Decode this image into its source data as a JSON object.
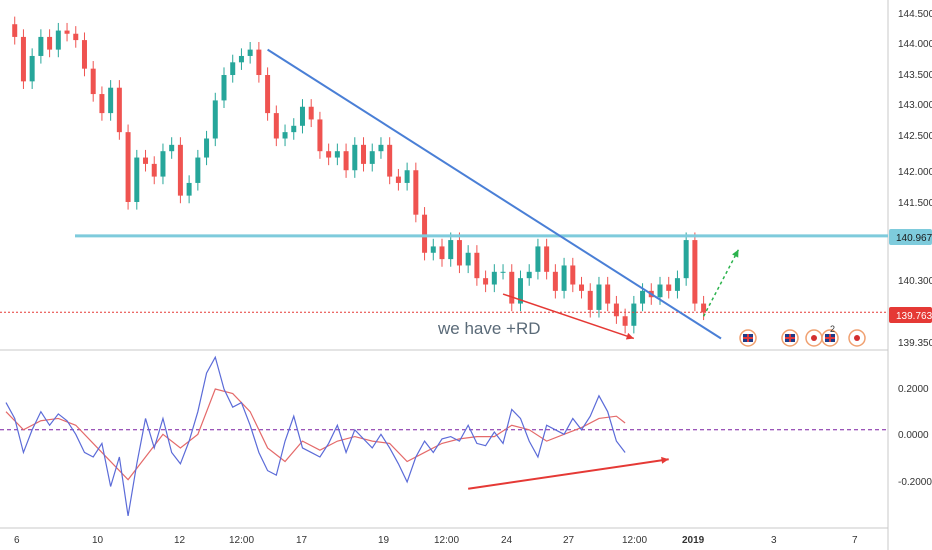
{
  "colors": {
    "up": "#26a69a",
    "down": "#ef5350",
    "trendline": "#4a7fd6",
    "resistance": "#7ecbdc",
    "current_price_line": "#e53935",
    "annotation": "#e53935",
    "projection": "#2bb24c",
    "osc_fast": "#5b6bd8",
    "osc_slow": "#e46a6a",
    "osc_zero": "#7b1fa2"
  },
  "price_panel": {
    "y_axis_ticks": [
      "144.500",
      "144.000",
      "143.500",
      "143.000",
      "142.500",
      "142.000",
      "141.500",
      "140.300",
      "139.350"
    ],
    "resistance_label": "140.967",
    "current_price_label": "139.763",
    "annotation_text": "we have +RD",
    "event_badges": [
      "uk-flag-icon",
      "uk-flag-icon",
      "uk-flag-icon",
      "japan-flag-icon",
      "uk-flag-icon",
      "japan-flag-icon"
    ],
    "event_badge_count": "2"
  },
  "oscillator_panel": {
    "y_axis_ticks": [
      "0.2000",
      "0.0000",
      "-0.2000"
    ]
  },
  "x_axis_ticks": [
    "6",
    "10",
    "12",
    "12:00",
    "17",
    "19",
    "12:00",
    "24",
    "27",
    "12:00",
    "2019",
    "3",
    "7"
  ],
  "chart_data": {
    "type": "line",
    "title": "",
    "price_series": {
      "y_range": [
        139.2,
        144.65
      ],
      "x_range": [
        0,
        100
      ],
      "close": [
        [
          0,
          144.3
        ],
        [
          1,
          144.1
        ],
        [
          2,
          143.4
        ],
        [
          3,
          143.8
        ],
        [
          4,
          144.1
        ],
        [
          5,
          143.9
        ],
        [
          6,
          144.2
        ],
        [
          7,
          144.15
        ],
        [
          8,
          144.05
        ],
        [
          9,
          143.6
        ],
        [
          10,
          143.2
        ],
        [
          11,
          142.9
        ],
        [
          12,
          143.3
        ],
        [
          13,
          142.6
        ],
        [
          14,
          141.5
        ],
        [
          15,
          142.2
        ],
        [
          16,
          142.1
        ],
        [
          17,
          141.9
        ],
        [
          18,
          142.3
        ],
        [
          19,
          142.4
        ],
        [
          20,
          141.6
        ],
        [
          21,
          141.8
        ],
        [
          22,
          142.2
        ],
        [
          23,
          142.5
        ],
        [
          24,
          143.1
        ],
        [
          25,
          143.5
        ],
        [
          26,
          143.7
        ],
        [
          27,
          143.8
        ],
        [
          28,
          143.9
        ],
        [
          29,
          143.5
        ],
        [
          30,
          142.9
        ],
        [
          31,
          142.5
        ],
        [
          32,
          142.6
        ],
        [
          33,
          142.7
        ],
        [
          34,
          143.0
        ],
        [
          35,
          142.8
        ],
        [
          36,
          142.3
        ],
        [
          37,
          142.2
        ],
        [
          38,
          142.3
        ],
        [
          39,
          142.0
        ],
        [
          40,
          142.4
        ],
        [
          41,
          142.1
        ],
        [
          42,
          142.3
        ],
        [
          43,
          142.4
        ],
        [
          44,
          141.9
        ],
        [
          45,
          141.8
        ],
        [
          46,
          142.0
        ],
        [
          47,
          141.3
        ],
        [
          48,
          140.7
        ],
        [
          49,
          140.8
        ],
        [
          50,
          140.6
        ],
        [
          51,
          140.9
        ],
        [
          52,
          140.5
        ],
        [
          53,
          140.7
        ],
        [
          54,
          140.3
        ],
        [
          55,
          140.2
        ],
        [
          56,
          140.4
        ],
        [
          57,
          140.4
        ],
        [
          58,
          139.9
        ],
        [
          59,
          140.3
        ],
        [
          60,
          140.4
        ],
        [
          61,
          140.8
        ],
        [
          62,
          140.4
        ],
        [
          63,
          140.1
        ],
        [
          64,
          140.5
        ],
        [
          65,
          140.2
        ],
        [
          66,
          140.1
        ],
        [
          67,
          139.8
        ],
        [
          68,
          140.2
        ],
        [
          69,
          139.9
        ],
        [
          70,
          139.7
        ],
        [
          71,
          139.55
        ],
        [
          72,
          139.9
        ],
        [
          73,
          140.1
        ],
        [
          74,
          140.0
        ],
        [
          75,
          140.2
        ],
        [
          76,
          140.1
        ],
        [
          77,
          140.3
        ],
        [
          78,
          140.9
        ],
        [
          79,
          139.9
        ],
        [
          80,
          139.76
        ]
      ],
      "trendline": [
        [
          30,
          143.9
        ],
        [
          82,
          139.35
        ]
      ],
      "resistance_level": 140.967,
      "current_price": 139.763,
      "annotation_arrow": [
        [
          57,
          140.05
        ],
        [
          72,
          139.35
        ]
      ],
      "projection_arrow": [
        [
          80,
          139.7
        ],
        [
          84,
          140.75
        ]
      ]
    },
    "oscillator": {
      "y_range": [
        -0.42,
        0.33
      ],
      "zero_line": 0,
      "fast": [
        [
          0,
          0.12
        ],
        [
          1,
          0.05
        ],
        [
          2,
          -0.1
        ],
        [
          3,
          0.0
        ],
        [
          4,
          0.08
        ],
        [
          5,
          0.02
        ],
        [
          6,
          0.07
        ],
        [
          7,
          0.04
        ],
        [
          8,
          -0.02
        ],
        [
          9,
          -0.1
        ],
        [
          10,
          -0.12
        ],
        [
          11,
          -0.06
        ],
        [
          12,
          -0.25
        ],
        [
          13,
          -0.12
        ],
        [
          14,
          -0.38
        ],
        [
          15,
          -0.15
        ],
        [
          16,
          0.05
        ],
        [
          17,
          -0.08
        ],
        [
          18,
          0.05
        ],
        [
          19,
          -0.1
        ],
        [
          20,
          -0.15
        ],
        [
          21,
          -0.05
        ],
        [
          22,
          0.08
        ],
        [
          23,
          0.25
        ],
        [
          24,
          0.32
        ],
        [
          25,
          0.18
        ],
        [
          26,
          0.1
        ],
        [
          27,
          0.12
        ],
        [
          28,
          0.02
        ],
        [
          29,
          -0.1
        ],
        [
          30,
          -0.18
        ],
        [
          31,
          -0.2
        ],
        [
          32,
          -0.05
        ],
        [
          33,
          0.06
        ],
        [
          34,
          -0.08
        ],
        [
          35,
          -0.1
        ],
        [
          36,
          -0.12
        ],
        [
          37,
          -0.06
        ],
        [
          38,
          0.02
        ],
        [
          39,
          -0.1
        ],
        [
          40,
          0.0
        ],
        [
          41,
          -0.04
        ],
        [
          42,
          -0.08
        ],
        [
          43,
          -0.02
        ],
        [
          44,
          -0.08
        ],
        [
          45,
          -0.15
        ],
        [
          46,
          -0.23
        ],
        [
          47,
          -0.12
        ],
        [
          48,
          -0.05
        ],
        [
          49,
          -0.1
        ],
        [
          50,
          -0.04
        ],
        [
          51,
          -0.03
        ],
        [
          52,
          -0.05
        ],
        [
          53,
          0.02
        ],
        [
          54,
          -0.06
        ],
        [
          55,
          -0.07
        ],
        [
          56,
          -0.01
        ],
        [
          57,
          -0.06
        ],
        [
          58,
          0.09
        ],
        [
          59,
          0.05
        ],
        [
          60,
          -0.05
        ],
        [
          61,
          -0.12
        ],
        [
          62,
          0.02
        ],
        [
          63,
          0.0
        ],
        [
          64,
          -0.02
        ],
        [
          65,
          0.05
        ],
        [
          66,
          0.0
        ],
        [
          67,
          0.06
        ],
        [
          68,
          0.15
        ],
        [
          69,
          0.08
        ],
        [
          70,
          -0.05
        ],
        [
          71,
          -0.1
        ]
      ],
      "slow": [
        [
          0,
          0.08
        ],
        [
          2,
          0.0
        ],
        [
          4,
          0.04
        ],
        [
          6,
          0.05
        ],
        [
          8,
          0.02
        ],
        [
          10,
          -0.06
        ],
        [
          12,
          -0.14
        ],
        [
          14,
          -0.22
        ],
        [
          16,
          -0.12
        ],
        [
          18,
          -0.02
        ],
        [
          20,
          -0.08
        ],
        [
          22,
          -0.02
        ],
        [
          24,
          0.18
        ],
        [
          26,
          0.16
        ],
        [
          28,
          0.08
        ],
        [
          30,
          -0.08
        ],
        [
          32,
          -0.14
        ],
        [
          34,
          -0.05
        ],
        [
          36,
          -0.09
        ],
        [
          38,
          -0.05
        ],
        [
          40,
          -0.03
        ],
        [
          42,
          -0.05
        ],
        [
          44,
          -0.06
        ],
        [
          46,
          -0.14
        ],
        [
          48,
          -0.1
        ],
        [
          50,
          -0.06
        ],
        [
          52,
          -0.04
        ],
        [
          54,
          -0.03
        ],
        [
          56,
          -0.03
        ],
        [
          58,
          0.02
        ],
        [
          60,
          0.0
        ],
        [
          62,
          -0.05
        ],
        [
          64,
          -0.02
        ],
        [
          66,
          0.01
        ],
        [
          68,
          0.05
        ],
        [
          70,
          0.06
        ],
        [
          71,
          0.03
        ]
      ],
      "divergence_arrow": [
        [
          53,
          -0.26
        ],
        [
          76,
          -0.13
        ]
      ]
    }
  }
}
